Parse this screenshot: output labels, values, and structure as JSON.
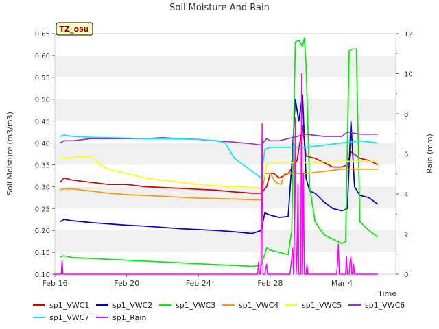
{
  "chart_data": {
    "type": "line",
    "title": "Soil Moisture And Rain",
    "site_tag": "TZ_osu",
    "xlabel": "Time",
    "ylabel_left": "Soil Moisture (m3/m3)",
    "ylabel_right": "Rain (mm)",
    "y_left_lim": [
      0.1,
      0.65
    ],
    "y_right_lim": [
      0,
      12
    ],
    "x_range_days": [
      0,
      19
    ],
    "x_ticks": [
      {
        "day": 0,
        "label": "Feb 16"
      },
      {
        "day": 4,
        "label": "Feb 20"
      },
      {
        "day": 8,
        "label": "Feb 24"
      },
      {
        "day": 12,
        "label": "Feb 28"
      },
      {
        "day": 16,
        "label": "Mar 4"
      }
    ],
    "y_left_ticks": [
      "0.10",
      "0.15",
      "0.20",
      "0.25",
      "0.30",
      "0.35",
      "0.40",
      "0.45",
      "0.50",
      "0.55",
      "0.60",
      "0.65"
    ],
    "y_right_ticks": [
      "0",
      "2",
      "4",
      "6",
      "8",
      "10",
      "12"
    ],
    "grid": "horizontal bands",
    "legend_position": "bottom",
    "series": [
      {
        "name": "sp1_VWC1",
        "color": "#dd0000",
        "axis": "left",
        "points": [
          [
            0.3,
            0.31
          ],
          [
            0.5,
            0.32
          ],
          [
            1,
            0.315
          ],
          [
            2,
            0.31
          ],
          [
            3,
            0.305
          ],
          [
            4,
            0.305
          ],
          [
            5,
            0.3
          ],
          [
            6,
            0.298
          ],
          [
            7,
            0.296
          ],
          [
            8,
            0.294
          ],
          [
            9,
            0.292
          ],
          [
            10,
            0.288
          ],
          [
            11,
            0.285
          ],
          [
            11.5,
            0.285
          ],
          [
            11.8,
            0.3
          ],
          [
            12,
            0.33
          ],
          [
            12.2,
            0.33
          ],
          [
            12.5,
            0.32
          ],
          [
            13,
            0.33
          ],
          [
            13.5,
            0.36
          ],
          [
            13.8,
            0.44
          ],
          [
            14,
            0.37
          ],
          [
            14.5,
            0.365
          ],
          [
            15,
            0.355
          ],
          [
            15.5,
            0.345
          ],
          [
            16,
            0.345
          ],
          [
            16.3,
            0.35
          ],
          [
            16.5,
            0.38
          ],
          [
            17,
            0.365
          ],
          [
            17.5,
            0.36
          ],
          [
            18,
            0.35
          ]
        ]
      },
      {
        "name": "sp1_VWC2",
        "color": "#0000cc",
        "axis": "left",
        "points": [
          [
            0.3,
            0.22
          ],
          [
            0.5,
            0.225
          ],
          [
            1,
            0.222
          ],
          [
            2,
            0.218
          ],
          [
            3,
            0.215
          ],
          [
            4,
            0.212
          ],
          [
            5,
            0.21
          ],
          [
            6,
            0.207
          ],
          [
            7,
            0.204
          ],
          [
            8,
            0.202
          ],
          [
            9,
            0.2
          ],
          [
            10,
            0.197
          ],
          [
            11,
            0.193
          ],
          [
            11.5,
            0.2
          ],
          [
            11.7,
            0.24
          ],
          [
            12,
            0.235
          ],
          [
            12.5,
            0.23
          ],
          [
            13,
            0.232
          ],
          [
            13.2,
            0.35
          ],
          [
            13.4,
            0.5
          ],
          [
            13.6,
            0.45
          ],
          [
            13.8,
            0.51
          ],
          [
            14,
            0.32
          ],
          [
            14.2,
            0.29
          ],
          [
            14.5,
            0.285
          ],
          [
            15,
            0.265
          ],
          [
            15.5,
            0.25
          ],
          [
            16,
            0.245
          ],
          [
            16.3,
            0.25
          ],
          [
            16.5,
            0.45
          ],
          [
            16.7,
            0.3
          ],
          [
            17,
            0.28
          ],
          [
            17.5,
            0.275
          ],
          [
            18,
            0.26
          ]
        ]
      },
      {
        "name": "sp1_VWC3",
        "color": "#00ee00",
        "axis": "left",
        "points": [
          [
            0.3,
            0.14
          ],
          [
            0.5,
            0.142
          ],
          [
            1,
            0.138
          ],
          [
            2,
            0.136
          ],
          [
            3,
            0.134
          ],
          [
            4,
            0.132
          ],
          [
            5,
            0.13
          ],
          [
            6,
            0.128
          ],
          [
            7,
            0.126
          ],
          [
            8,
            0.124
          ],
          [
            9,
            0.122
          ],
          [
            10,
            0.12
          ],
          [
            11,
            0.118
          ],
          [
            11.5,
            0.12
          ],
          [
            11.8,
            0.16
          ],
          [
            12,
            0.155
          ],
          [
            12.5,
            0.15
          ],
          [
            13,
            0.145
          ],
          [
            13.2,
            0.2
          ],
          [
            13.4,
            0.63
          ],
          [
            13.6,
            0.635
          ],
          [
            13.8,
            0.62
          ],
          [
            13.9,
            0.64
          ],
          [
            14,
            0.58
          ],
          [
            14.2,
            0.3
          ],
          [
            14.5,
            0.22
          ],
          [
            15,
            0.19
          ],
          [
            15.5,
            0.18
          ],
          [
            16,
            0.17
          ],
          [
            16.2,
            0.175
          ],
          [
            16.4,
            0.61
          ],
          [
            16.6,
            0.615
          ],
          [
            16.8,
            0.615
          ],
          [
            17,
            0.22
          ],
          [
            17.5,
            0.2
          ],
          [
            18,
            0.185
          ]
        ]
      },
      {
        "name": "sp1_VWC4",
        "color": "#ff9900",
        "axis": "left",
        "points": [
          [
            0.3,
            0.293
          ],
          [
            0.5,
            0.295
          ],
          [
            1,
            0.295
          ],
          [
            2,
            0.29
          ],
          [
            3,
            0.285
          ],
          [
            4,
            0.282
          ],
          [
            5,
            0.28
          ],
          [
            6,
            0.278
          ],
          [
            7,
            0.276
          ],
          [
            8,
            0.274
          ],
          [
            9,
            0.273
          ],
          [
            10,
            0.272
          ],
          [
            11,
            0.27
          ],
          [
            11.5,
            0.27
          ],
          [
            11.7,
            0.33
          ],
          [
            12,
            0.33
          ],
          [
            12.3,
            0.31
          ],
          [
            12.6,
            0.305
          ],
          [
            12.8,
            0.33
          ],
          [
            13,
            0.33
          ],
          [
            14,
            0.33
          ],
          [
            15,
            0.335
          ],
          [
            16,
            0.34
          ],
          [
            17,
            0.34
          ],
          [
            18,
            0.34
          ]
        ]
      },
      {
        "name": "sp1_VWC5",
        "color": "#ffff00",
        "axis": "left",
        "points": [
          [
            0.3,
            0.365
          ],
          [
            1,
            0.367
          ],
          [
            2,
            0.37
          ],
          [
            2.5,
            0.35
          ],
          [
            3,
            0.34
          ],
          [
            4,
            0.33
          ],
          [
            5,
            0.32
          ],
          [
            6,
            0.315
          ],
          [
            7,
            0.31
          ],
          [
            8,
            0.305
          ],
          [
            9,
            0.302
          ],
          [
            10,
            0.3
          ],
          [
            11,
            0.298
          ],
          [
            11.5,
            0.296
          ],
          [
            11.8,
            0.35
          ],
          [
            12,
            0.355
          ],
          [
            13,
            0.355
          ],
          [
            14,
            0.355
          ],
          [
            15,
            0.357
          ],
          [
            16,
            0.358
          ],
          [
            17,
            0.358
          ],
          [
            18,
            0.358
          ]
        ]
      },
      {
        "name": "sp1_VWC6",
        "color": "#9933cc",
        "axis": "left",
        "points": [
          [
            0.3,
            0.4
          ],
          [
            0.5,
            0.405
          ],
          [
            1,
            0.405
          ],
          [
            2,
            0.41
          ],
          [
            3,
            0.41
          ],
          [
            4,
            0.41
          ],
          [
            5,
            0.41
          ],
          [
            6,
            0.412
          ],
          [
            7,
            0.41
          ],
          [
            8,
            0.408
          ],
          [
            9,
            0.405
          ],
          [
            10,
            0.402
          ],
          [
            11,
            0.398
          ],
          [
            11.5,
            0.395
          ],
          [
            11.8,
            0.41
          ],
          [
            12,
            0.405
          ],
          [
            12.5,
            0.405
          ],
          [
            13,
            0.41
          ],
          [
            13.5,
            0.415
          ],
          [
            14,
            0.42
          ],
          [
            15,
            0.415
          ],
          [
            16,
            0.415
          ],
          [
            16.3,
            0.425
          ],
          [
            17,
            0.42
          ],
          [
            18,
            0.42
          ]
        ]
      },
      {
        "name": "sp1_VWC7",
        "color": "#00eeee",
        "axis": "left",
        "points": [
          [
            0.3,
            0.415
          ],
          [
            0.5,
            0.418
          ],
          [
            1,
            0.415
          ],
          [
            2,
            0.413
          ],
          [
            3,
            0.412
          ],
          [
            4,
            0.411
          ],
          [
            5,
            0.41
          ],
          [
            6,
            0.41
          ],
          [
            7,
            0.409
          ],
          [
            8,
            0.408
          ],
          [
            9,
            0.405
          ],
          [
            9.5,
            0.4
          ],
          [
            10,
            0.365
          ],
          [
            10.5,
            0.35
          ],
          [
            11,
            0.335
          ],
          [
            11.5,
            0.32
          ],
          [
            11.7,
            0.385
          ],
          [
            12,
            0.39
          ],
          [
            13,
            0.39
          ],
          [
            14,
            0.39
          ],
          [
            15,
            0.395
          ],
          [
            16,
            0.4
          ],
          [
            17,
            0.405
          ],
          [
            18,
            0.4
          ]
        ]
      },
      {
        "name": "sp1_Rain",
        "color": "#ff00ff",
        "axis": "right",
        "points": [
          [
            0,
            0
          ],
          [
            0.35,
            0
          ],
          [
            0.4,
            0.7
          ],
          [
            0.45,
            0
          ],
          [
            11.3,
            0
          ],
          [
            11.35,
            0.6
          ],
          [
            11.4,
            0
          ],
          [
            11.45,
            0
          ],
          [
            11.5,
            0.8
          ],
          [
            11.55,
            7.5
          ],
          [
            11.6,
            0
          ],
          [
            11.7,
            0
          ],
          [
            11.8,
            0.5
          ],
          [
            11.85,
            0
          ],
          [
            13.1,
            0
          ],
          [
            13.2,
            0.8
          ],
          [
            13.25,
            1.3
          ],
          [
            13.3,
            0
          ],
          [
            13.35,
            2.0
          ],
          [
            13.4,
            7.8
          ],
          [
            13.45,
            0
          ],
          [
            13.5,
            0.9
          ],
          [
            13.55,
            4.5
          ],
          [
            13.6,
            0
          ],
          [
            13.7,
            0
          ],
          [
            13.75,
            10.0
          ],
          [
            13.8,
            0
          ],
          [
            13.85,
            5.0
          ],
          [
            13.9,
            0
          ],
          [
            14.0,
            0
          ],
          [
            14.05,
            0.5
          ],
          [
            14.1,
            0
          ],
          [
            15.7,
            0
          ],
          [
            15.75,
            0.5
          ],
          [
            15.8,
            1.5
          ],
          [
            15.85,
            0
          ],
          [
            16.2,
            0
          ],
          [
            16.25,
            0.9
          ],
          [
            16.3,
            0
          ],
          [
            16.4,
            0
          ],
          [
            16.45,
            0.6
          ],
          [
            16.5,
            0.9
          ],
          [
            16.55,
            0
          ],
          [
            16.6,
            0
          ],
          [
            16.65,
            0.5
          ],
          [
            16.7,
            0
          ],
          [
            18,
            0
          ]
        ]
      }
    ]
  }
}
